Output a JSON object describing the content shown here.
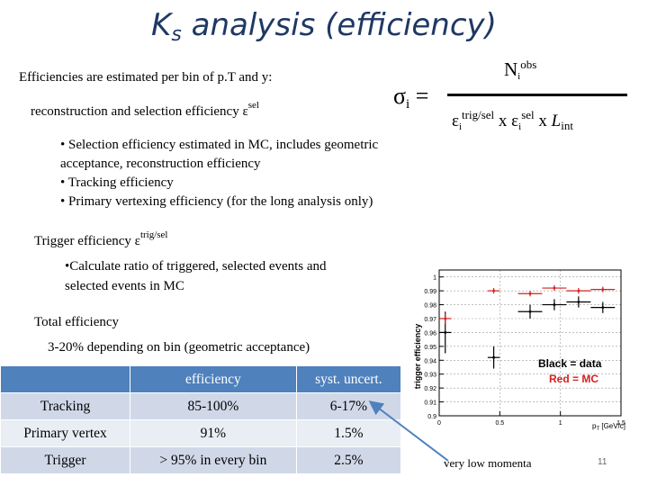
{
  "title": {
    "main": "K",
    "sub": "s",
    "rest": " analysis (efficiency)"
  },
  "intro": "Efficiencies are estimated per bin of p.T and y:",
  "reco_sel": {
    "text": "reconstruction and selection efficiency  ε",
    "sup": "sel"
  },
  "formula": {
    "sigma": "σ",
    "sigma_sub": "i",
    "equals": "=",
    "numerator": "N",
    "num_sub": "i",
    "num_sup": "obs",
    "eps1": "ε",
    "eps1_sub": "i",
    "eps1_sup": "trig/sel",
    "x1": "x",
    "eps2": "ε",
    "eps2_sub": "i",
    "eps2_sup": "sel",
    "x2": "x",
    "L": "L",
    "L_sub": "int"
  },
  "bullets": [
    "• Selection efficiency estimated in MC, includes geometric",
    "acceptance, reconstruction efficiency",
    "• Tracking efficiency",
    "• Primary vertexing efficiency (for the long analysis only)"
  ],
  "trigger": {
    "text": "Trigger efficiency ε",
    "sup": "trig/sel"
  },
  "trigger_bullet": [
    "•Calculate ratio of triggered, selected events and",
    "selected events in MC"
  ],
  "total": "Total efficiency",
  "total_range": "3-20% depending on bin (geometric acceptance)",
  "table": {
    "headers": [
      "",
      "efficiency",
      "syst. uncert."
    ],
    "rows": [
      [
        "Tracking",
        "85-100%",
        "6-17%"
      ],
      [
        "Primary vertex",
        "91%",
        "1.5%"
      ],
      [
        "Trigger",
        "> 95% in every bin",
        "2.5%"
      ]
    ]
  },
  "note": "very low momenta",
  "page_number": "11",
  "colors": {
    "title": "#1f3864",
    "table_header": "#4f81bd",
    "row_dark": "#d0d8e8",
    "row_light": "#e9edf4",
    "arrow": "#4f81bd",
    "mc": "#d42020"
  },
  "chart_data": {
    "type": "scatter",
    "ylabel": "trigger efficiency",
    "xlabel": "p",
    "xlabel_sub": "T",
    "xlabel_unit": " [GeV/c]",
    "xlim": [
      0,
      1.5
    ],
    "ylim": [
      0.9,
      1.005
    ],
    "x_ticks": [
      "0",
      "0.5",
      "1",
      "1.5"
    ],
    "y_ticks": [
      "0.9",
      "0.91",
      "0.92",
      "0.93",
      "0.94",
      "0.95",
      "0.96",
      "0.97",
      "0.98",
      "0.99",
      "1"
    ],
    "legend": [
      "Black = data",
      "Red = MC"
    ],
    "series": [
      {
        "name": "Black = data",
        "color": "#000000",
        "x": [
          0.05,
          0.45,
          0.75,
          0.95,
          1.15,
          1.35
        ],
        "y": [
          0.96,
          0.942,
          0.975,
          0.98,
          0.982,
          0.978
        ],
        "xerr": [
          0.05,
          0.05,
          0.1,
          0.1,
          0.1,
          0.1
        ],
        "yerr": [
          0.015,
          0.008,
          0.005,
          0.004,
          0.004,
          0.004
        ]
      },
      {
        "name": "Red = MC",
        "color": "#d42020",
        "x": [
          0.05,
          0.45,
          0.75,
          0.95,
          1.15,
          1.35
        ],
        "y": [
          0.97,
          0.99,
          0.988,
          0.992,
          0.99,
          0.991
        ],
        "xerr": [
          0.05,
          0.05,
          0.1,
          0.1,
          0.1,
          0.1
        ],
        "yerr": [
          0.004,
          0.002,
          0.002,
          0.002,
          0.002,
          0.002
        ]
      }
    ]
  }
}
